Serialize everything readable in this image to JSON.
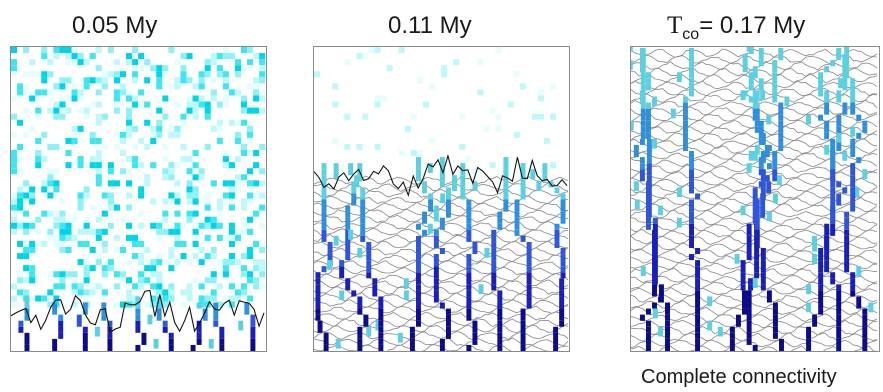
{
  "panels": [
    {
      "id": "p1",
      "title": "0.05 My",
      "front_fraction": 0.13
    },
    {
      "id": "p2",
      "title": "0.11 My",
      "front_fraction": 0.58
    },
    {
      "id": "p3",
      "title_symbol": "T",
      "title_subscript": "co",
      "title_rest": "= 0.17 My",
      "front_fraction": 1.0
    }
  ],
  "caption": "Complete connectivity",
  "colors": {
    "frame": "#8a8a8a",
    "isoline": "#8c8c8c",
    "front_line": "#111111",
    "pixel_colors": [
      "#e6fdfd",
      "#bff8fb",
      "#8ff1f6",
      "#3ee6f0",
      "#00d4e8"
    ],
    "channel_colors": [
      "#5ad0e0",
      "#2f8fdc",
      "#2f55d8",
      "#1a1fb8",
      "#0c0c8a"
    ]
  }
}
